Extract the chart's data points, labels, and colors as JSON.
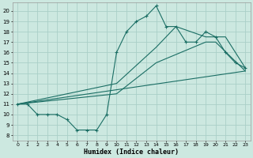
{
  "xlabel": "Humidex (Indice chaleur)",
  "bg_color": "#cce8e0",
  "grid_color": "#aacfc8",
  "line_color": "#1a6e64",
  "xlim": [
    -0.5,
    23.5
  ],
  "ylim": [
    7.5,
    20.8
  ],
  "yticks": [
    8,
    9,
    10,
    11,
    12,
    13,
    14,
    15,
    16,
    17,
    18,
    19,
    20
  ],
  "xticks": [
    0,
    1,
    2,
    3,
    4,
    5,
    6,
    7,
    8,
    9,
    10,
    11,
    12,
    13,
    14,
    15,
    16,
    17,
    18,
    19,
    20,
    21,
    22,
    23
  ],
  "line1_x": [
    0,
    1,
    2,
    3,
    4,
    5,
    6,
    7,
    8,
    9,
    10,
    11,
    12,
    13,
    14,
    15,
    16,
    17,
    18,
    19,
    20,
    21,
    22,
    23
  ],
  "line1_y": [
    11,
    11,
    10,
    10,
    10,
    9.5,
    8.5,
    8.5,
    8.5,
    10,
    16,
    18,
    19,
    19.5,
    20.5,
    18.5,
    18.5,
    17,
    17,
    18,
    17.5,
    16,
    15,
    14.5
  ],
  "line2_x": [
    0,
    10,
    14,
    16,
    19,
    20,
    21,
    22,
    23
  ],
  "line2_y": [
    11,
    13,
    16.5,
    18.5,
    17.5,
    17.5,
    17.5,
    16,
    14.5
  ],
  "line3_x": [
    0,
    10,
    14,
    19,
    20,
    23
  ],
  "line3_y": [
    11,
    12,
    15,
    17,
    17,
    14.2
  ],
  "line4_x": [
    0,
    23
  ],
  "line4_y": [
    11,
    14.2
  ]
}
